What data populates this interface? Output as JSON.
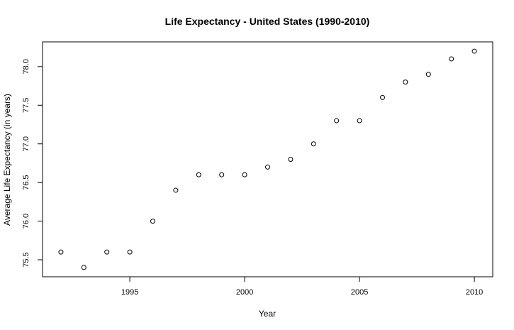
{
  "chart_data": {
    "type": "scatter",
    "title": "Life Expectancy - United States (1990-2010)",
    "xlabel": "Year",
    "ylabel": "Average Life Expectancy (in years)",
    "xlim": [
      1991.2,
      2010.8
    ],
    "ylim": [
      75.28,
      78.32
    ],
    "x_ticks": [
      1995,
      2000,
      2005,
      2010
    ],
    "y_ticks": [
      "75.5",
      "76.0",
      "76.5",
      "77.0",
      "77.5",
      "78.0"
    ],
    "grid": false,
    "marker": "open-circle",
    "x": [
      1992,
      1993,
      1994,
      1995,
      1996,
      1997,
      1998,
      1999,
      2000,
      2001,
      2002,
      2003,
      2004,
      2005,
      2006,
      2007,
      2008,
      2009,
      2010
    ],
    "y": [
      75.6,
      75.4,
      75.6,
      75.6,
      76.0,
      76.4,
      76.6,
      76.6,
      76.6,
      76.7,
      76.8,
      77.0,
      77.3,
      77.3,
      77.6,
      77.8,
      77.9,
      78.1,
      78.2
    ]
  }
}
